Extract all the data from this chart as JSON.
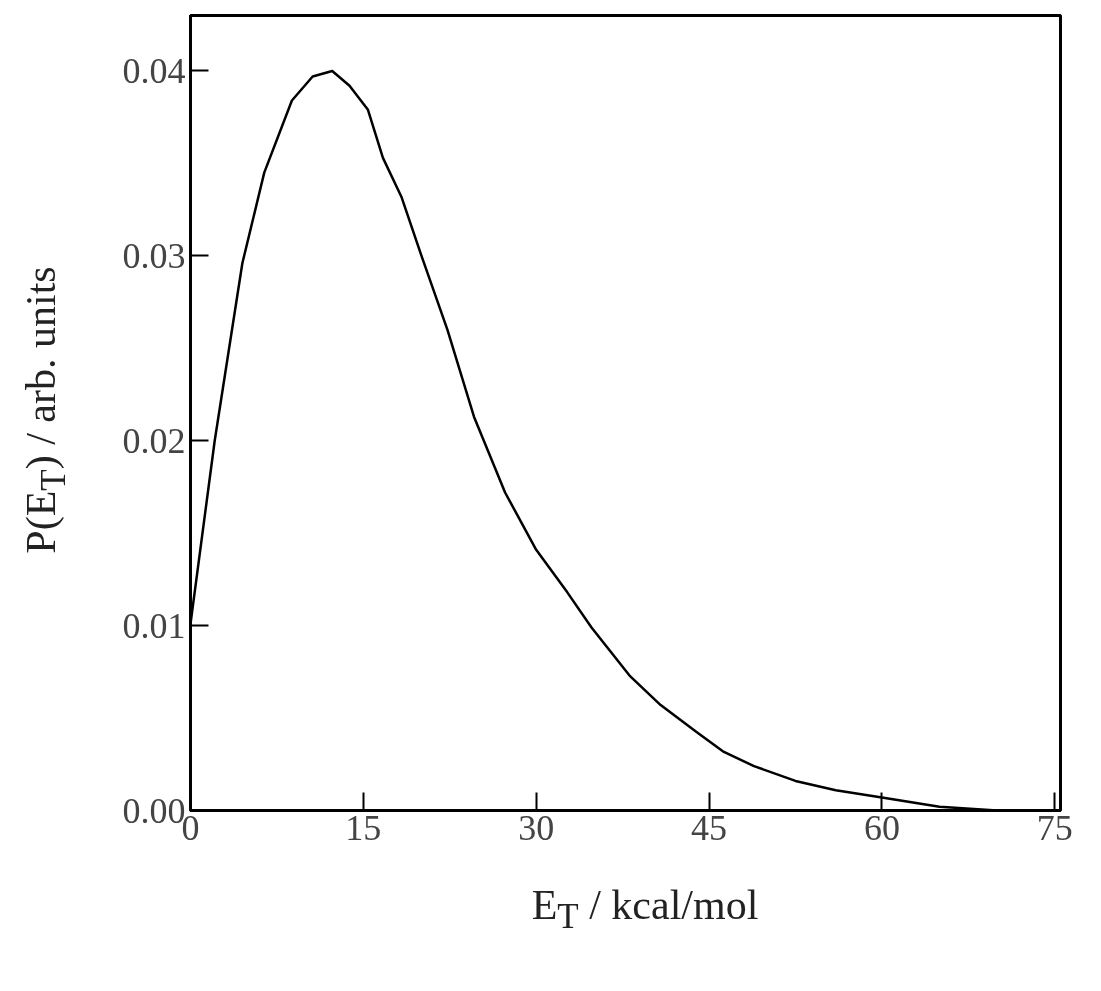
{
  "chart_data": {
    "type": "line",
    "xlabel": "E$_{T}$ / kcal/mol",
    "ylabel": "P(E$_{T}$) / arb. units",
    "x": [
      0,
      2.1,
      4.5,
      6.4,
      8.8,
      10.6,
      12.3,
      13.8,
      15.4,
      16.7,
      18.3,
      20.1,
      22.3,
      24.6,
      27.3,
      30,
      32.7,
      34.8,
      38.1,
      40.8,
      44,
      46.2,
      48.9,
      52.5,
      56,
      60,
      65,
      70
    ],
    "series": [
      {
        "color": "#000000",
        "values": [
          0.0101,
          0.02,
          0.0296,
          0.0345,
          0.0384,
          0.0397,
          0.04,
          0.0392,
          0.0379,
          0.0353,
          0.0332,
          0.0299,
          0.026,
          0.0213,
          0.0172,
          0.0141,
          0.0118,
          0.0099,
          0.0073,
          0.0057,
          0.0042,
          0.0032,
          0.0024,
          0.0016,
          0.0011,
          0.0007,
          0.0002,
          0.0
        ]
      }
    ],
    "xlim": [
      0,
      75.5
    ],
    "ylim": [
      0,
      0.043
    ],
    "xticks": [
      0,
      15,
      30,
      45,
      60,
      75
    ],
    "yticks": [
      {
        "value": 0,
        "label": "0.00"
      },
      {
        "value": 0.01,
        "label": "0.01"
      },
      {
        "value": 0.02,
        "label": "0.02"
      },
      {
        "value": 0.03,
        "label": "0.03"
      },
      {
        "value": 0.04,
        "label": "0.04"
      }
    ],
    "grid": false,
    "line_style": "solid",
    "marker": "none"
  }
}
